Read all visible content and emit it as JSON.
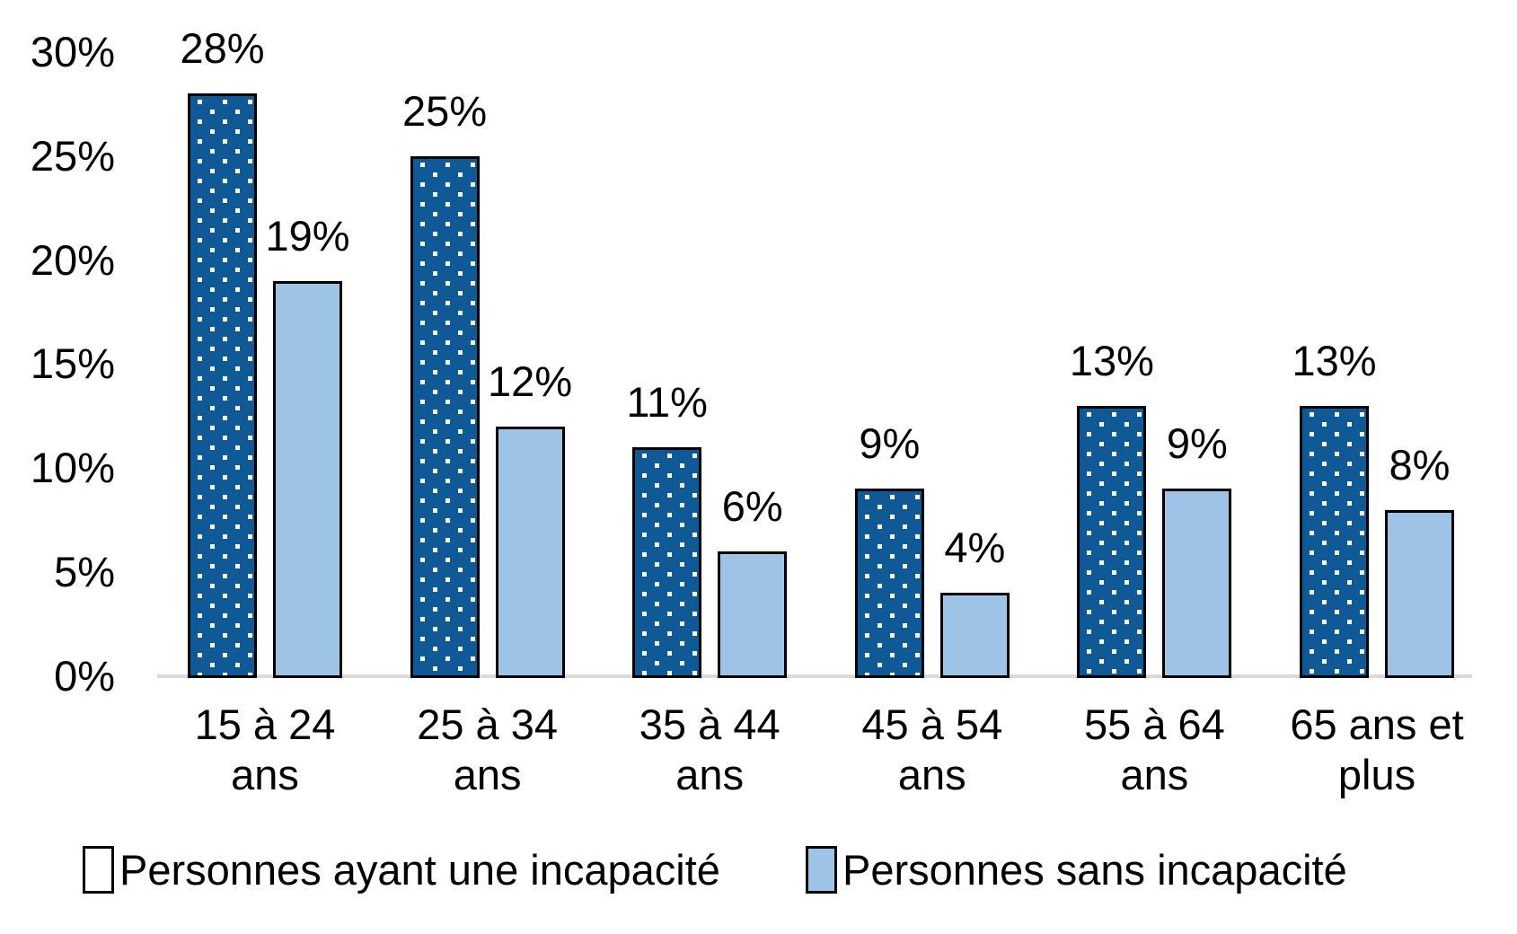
{
  "chart_data": {
    "type": "bar",
    "title": "",
    "categories": [
      "15 à 24\nans",
      "25 à 34\nans",
      "35 à 44\nans",
      "45 à 54\nans",
      "55 à 64\nans",
      "65 ans et\nplus"
    ],
    "series": [
      {
        "name": "Personnes ayant une incapacité",
        "values": [
          28,
          25,
          11,
          9,
          13,
          13
        ],
        "fill": "dotted",
        "color": "#0F5A96",
        "dot_color": "#FFFFFF"
      },
      {
        "name": "Personnes sans incapacité",
        "values": [
          19,
          12,
          6,
          4,
          9,
          8
        ],
        "fill": "solid",
        "color": "#9DC3E6"
      }
    ],
    "value_suffix": "%",
    "data_labels_visible": true,
    "y_axis": {
      "tick_labels": [
        "0%",
        "5%",
        "10%",
        "15%",
        "20%",
        "25%",
        "30%"
      ],
      "tick_values": [
        0,
        5,
        10,
        15,
        20,
        25,
        30
      ],
      "min": 0,
      "max": 30
    },
    "grid": false,
    "legend_position": "bottom",
    "axis_line_color": "#D9D9D9",
    "bar_border_color": "#000000",
    "text_color": "#000000",
    "background_color": "#FFFFFF"
  }
}
